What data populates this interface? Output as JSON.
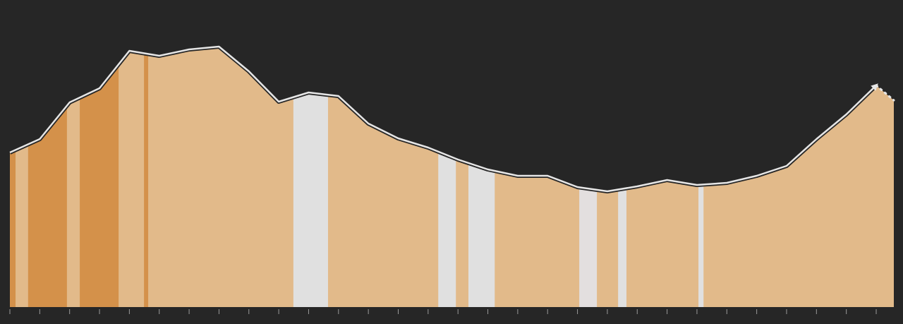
{
  "chart_data": {
    "type": "area",
    "x": [
      0,
      1,
      2,
      3,
      4,
      5,
      6,
      7,
      8,
      9,
      10,
      11,
      12,
      13,
      14,
      15,
      16,
      17,
      18,
      19,
      20,
      21,
      22,
      23,
      24,
      25,
      26,
      27,
      28,
      29,
      29.59
    ],
    "values": [
      219,
      238,
      290,
      310,
      363,
      356,
      365,
      369,
      334,
      291,
      304,
      299,
      260,
      239,
      226,
      209,
      195,
      186,
      186,
      170,
      164,
      171,
      180,
      173,
      176,
      186,
      200,
      238,
      273,
      314,
      293
    ],
    "color": "#e2ba8a",
    "line_color": "#e6e6e6",
    "xlim": [
      0,
      29.59
    ],
    "ylim": [
      0,
      435
    ],
    "xticks": [
      0,
      1,
      2,
      3,
      4,
      5,
      6,
      7,
      8,
      9,
      10,
      11,
      12,
      13,
      14,
      15,
      16,
      17,
      18,
      19,
      20,
      21,
      22,
      23,
      24,
      25,
      26,
      27,
      28,
      29
    ],
    "bands": [
      {
        "start": 0,
        "end": 0.19,
        "color": "#d4914a"
      },
      {
        "start": 0.61,
        "end": 1.91,
        "color": "#d4914a"
      },
      {
        "start": 2.34,
        "end": 3.64,
        "color": "#d4914a"
      },
      {
        "start": 4.49,
        "end": 4.63,
        "color": "#d4914a"
      },
      {
        "start": 9.49,
        "end": 10.65,
        "color": "#e0e0e0"
      },
      {
        "start": 14.34,
        "end": 14.93,
        "color": "#e0e0e0"
      },
      {
        "start": 15.35,
        "end": 16.23,
        "color": "#e0e0e0"
      },
      {
        "start": 19.06,
        "end": 19.65,
        "color": "#e3dfdf"
      },
      {
        "start": 20.36,
        "end": 20.64,
        "color": "#e0e0e0"
      },
      {
        "start": 23.05,
        "end": 23.22,
        "color": "#e0e0e0"
      }
    ]
  }
}
